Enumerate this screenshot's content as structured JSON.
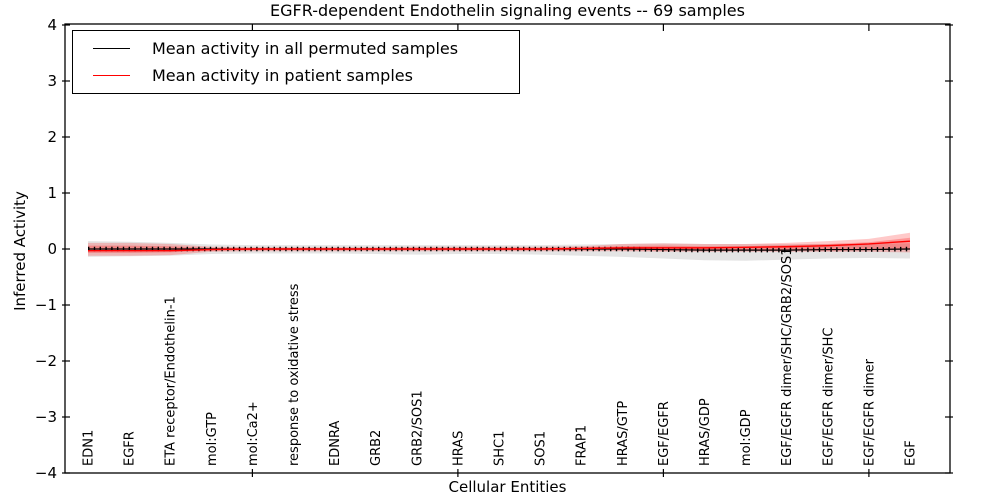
{
  "title": "EGFR-dependent Endothelin signaling events -- 69 samples",
  "legend": {
    "entries": [
      {
        "label": "Mean activity in all permuted samples",
        "color": "#000000"
      },
      {
        "label": "Mean activity in patient samples",
        "color": "#ff0000"
      }
    ]
  },
  "chart_data": {
    "type": "line",
    "title": "EGFR-dependent Endothelin signaling events -- 69 samples",
    "xlabel": "Cellular Entities",
    "ylabel": "Inferred Activity",
    "ylim": [
      -4,
      4
    ],
    "yticks": [
      4,
      3,
      2,
      1,
      0,
      -1,
      -2,
      -3,
      -4
    ],
    "grid": false,
    "legend_position": "upper left",
    "x_major_tick_indices": [
      4,
      9,
      14,
      19
    ],
    "categories": [
      "EDN1",
      "EGFR",
      "ETA receptor/Endothelin-1",
      "mol:GTP",
      "mol:Ca2+",
      "response to oxidative stress",
      "EDNRA",
      "GRB2",
      "GRB2/SOS1",
      "HRAS",
      "SHC1",
      "SOS1",
      "FRAP1",
      "HRAS/GTP",
      "EGF/EGFR",
      "HRAS/GDP",
      "mol:GDP",
      "EGF/EGFR dimer/SHC/GRB2/SOS1",
      "EGF/EGFR dimer/SHC",
      "EGF/EGFR dimer",
      "EGF"
    ],
    "series": [
      {
        "name": "Mean activity in all permuted samples",
        "color": "#000000",
        "values": [
          0,
          0,
          0,
          0,
          0,
          0,
          0,
          0,
          0,
          0,
          0,
          0,
          0,
          0,
          -0.01,
          -0.02,
          -0.02,
          -0.02,
          -0.01,
          -0.01,
          0
        ]
      },
      {
        "name": "Mean activity in patient samples",
        "color": "#ff0000",
        "values": [
          -0.03,
          -0.03,
          -0.03,
          -0.01,
          0,
          0,
          0,
          0,
          0,
          0,
          0,
          0,
          0.01,
          0.02,
          0.02,
          0.02,
          0.03,
          0.04,
          0.06,
          0.09,
          0.14
        ]
      }
    ],
    "bands": [
      {
        "name": "permuted-range",
        "color": "#e4e4e4",
        "upper": [
          0.14,
          0.13,
          0.11,
          0.08,
          0.07,
          0.07,
          0.07,
          0.07,
          0.07,
          0.07,
          0.07,
          0.07,
          0.08,
          0.09,
          0.1,
          0.09,
          0.09,
          0.09,
          0.09,
          0.09,
          0.1
        ],
        "lower": [
          -0.14,
          -0.13,
          -0.12,
          -0.09,
          -0.08,
          -0.08,
          -0.08,
          -0.09,
          -0.1,
          -0.09,
          -0.09,
          -0.1,
          -0.12,
          -0.14,
          -0.17,
          -0.2,
          -0.21,
          -0.19,
          -0.17,
          -0.16,
          -0.17
        ]
      },
      {
        "name": "patient-range-outer",
        "color": "rgba(255,40,40,0.25)",
        "upper": [
          0.11,
          0.11,
          0.09,
          0.04,
          0.03,
          0.03,
          0.03,
          0.03,
          0.04,
          0.04,
          0.04,
          0.04,
          0.05,
          0.09,
          0.1,
          0.09,
          0.09,
          0.11,
          0.14,
          0.18,
          0.29
        ],
        "lower": [
          -0.12,
          -0.12,
          -0.11,
          -0.05,
          -0.04,
          -0.04,
          -0.04,
          -0.04,
          -0.04,
          -0.04,
          -0.04,
          -0.04,
          -0.04,
          -0.04,
          -0.05,
          -0.05,
          -0.05,
          -0.05,
          -0.05,
          -0.05,
          -0.06
        ]
      },
      {
        "name": "patient-range-inner",
        "color": "rgba(255,0,0,0.25)",
        "upper": [
          0.06,
          0.06,
          0.05,
          0.02,
          0.02,
          0.02,
          0.02,
          0.02,
          0.02,
          0.02,
          0.02,
          0.02,
          0.03,
          0.05,
          0.06,
          0.05,
          0.05,
          0.07,
          0.09,
          0.12,
          0.2
        ],
        "lower": [
          -0.07,
          -0.07,
          -0.06,
          -0.03,
          -0.02,
          -0.02,
          -0.02,
          -0.02,
          -0.02,
          -0.02,
          -0.02,
          -0.02,
          -0.02,
          -0.02,
          -0.03,
          -0.03,
          -0.03,
          -0.03,
          -0.03,
          -0.02,
          -0.01
        ]
      }
    ]
  }
}
